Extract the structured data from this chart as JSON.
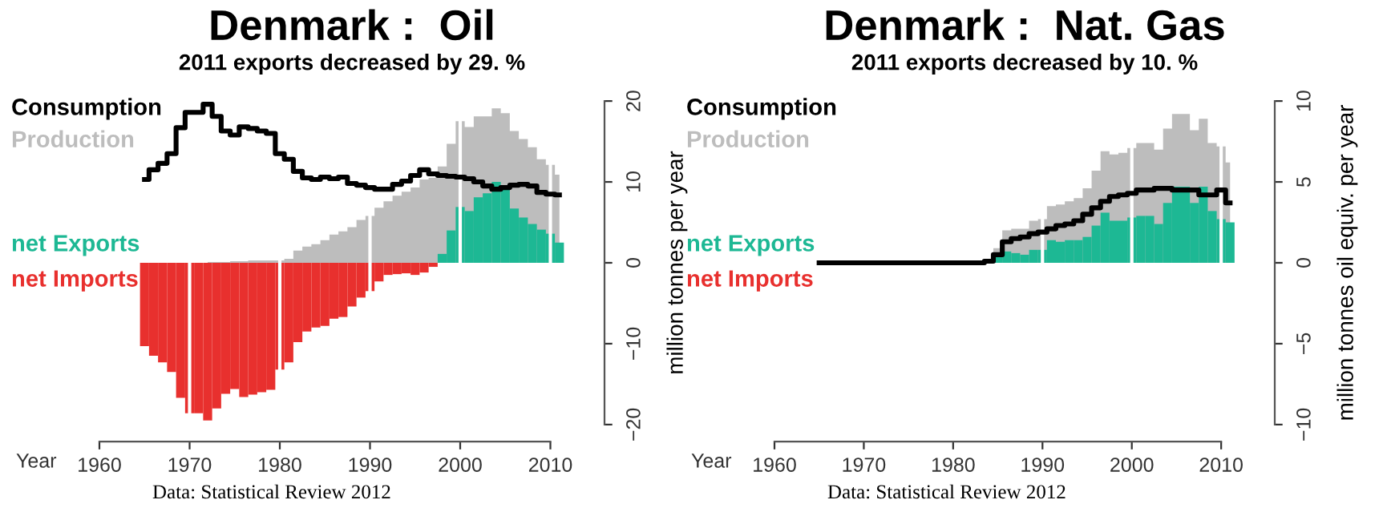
{
  "chart_data": [
    {
      "type": "bar",
      "title": "Denmark :  Oil",
      "subtitle": "2011 exports decreased by 29. %",
      "xlabel": "Year",
      "ylabel": "million tonnes per year",
      "x": [
        1965,
        1966,
        1967,
        1968,
        1969,
        1970,
        1971,
        1972,
        1973,
        1974,
        1975,
        1976,
        1977,
        1978,
        1979,
        1980,
        1981,
        1982,
        1983,
        1984,
        1985,
        1986,
        1987,
        1988,
        1989,
        1990,
        1991,
        1992,
        1993,
        1994,
        1995,
        1996,
        1997,
        1998,
        1999,
        2000,
        2001,
        2002,
        2003,
        2004,
        2005,
        2006,
        2007,
        2008,
        2009,
        2010,
        2011
      ],
      "series": [
        {
          "name": "Consumption",
          "type": "step",
          "color": "#000000",
          "values": [
            10.3,
            11.5,
            12.3,
            13.5,
            16.7,
            18.6,
            18.6,
            19.6,
            18.1,
            16.3,
            15.8,
            16.8,
            16.6,
            16.3,
            16.0,
            13.5,
            12.8,
            11.3,
            10.5,
            10.3,
            10.6,
            10.4,
            10.6,
            9.8,
            9.6,
            9.3,
            9.1,
            9.1,
            9.7,
            10.1,
            10.8,
            11.5,
            11.0,
            10.8,
            10.7,
            10.6,
            10.4,
            10.0,
            9.5,
            9.1,
            9.3,
            9.6,
            9.7,
            9.5,
            8.7,
            8.5,
            8.4
          ]
        },
        {
          "name": "Production",
          "type": "area",
          "color": "#bdbdbd",
          "values": [
            null,
            null,
            null,
            null,
            null,
            null,
            null,
            0.1,
            0.1,
            0.1,
            0.2,
            0.2,
            0.3,
            0.3,
            0.3,
            0.3,
            0.5,
            1.5,
            2.0,
            2.3,
            2.8,
            3.5,
            3.9,
            4.4,
            5.3,
            5.8,
            6.8,
            7.6,
            8.3,
            8.8,
            9.3,
            10.3,
            10.5,
            11.9,
            14.7,
            17.5,
            16.8,
            18.1,
            18.1,
            19.1,
            18.5,
            16.3,
            15.3,
            14.3,
            12.8,
            12.1,
            10.9
          ]
        },
        {
          "name": "net Exports",
          "color": "#1db894",
          "values": [
            null,
            null,
            null,
            null,
            null,
            null,
            null,
            null,
            null,
            null,
            null,
            null,
            null,
            null,
            null,
            null,
            null,
            null,
            null,
            null,
            null,
            null,
            null,
            null,
            null,
            null,
            null,
            null,
            null,
            null,
            null,
            null,
            null,
            1.1,
            4.0,
            6.9,
            6.4,
            8.1,
            8.6,
            10.0,
            9.2,
            6.7,
            5.6,
            4.8,
            4.1,
            3.6,
            2.5
          ]
        },
        {
          "name": "net Imports",
          "color": "#e8302e",
          "values": [
            -10.3,
            -11.5,
            -12.3,
            -13.5,
            -16.7,
            -18.6,
            -18.6,
            -19.5,
            -18.0,
            -16.2,
            -15.6,
            -16.6,
            -16.3,
            -16.0,
            -15.7,
            -13.2,
            -12.3,
            -9.8,
            -8.5,
            -8.0,
            -7.8,
            -6.9,
            -6.7,
            -5.4,
            -4.3,
            -3.5,
            -2.3,
            -1.5,
            -1.4,
            -1.3,
            -1.5,
            -1.2,
            -0.5,
            null,
            null,
            null,
            null,
            null,
            null,
            null,
            null,
            null,
            null,
            null,
            null,
            null,
            null
          ]
        }
      ],
      "xlim": [
        1960,
        2016
      ],
      "xticks": [
        1960,
        1970,
        1980,
        1990,
        2000,
        2010
      ],
      "ylim": [
        -21,
        21
      ],
      "yticks": [
        -20,
        -10,
        0,
        10,
        20
      ],
      "grid": "x",
      "legend": "left",
      "annotations": [
        "Data: Statistical Review 2012"
      ]
    },
    {
      "type": "bar",
      "title": "Denmark :  Nat. Gas",
      "subtitle": "2011 exports decreased by 10. %",
      "xlabel": "Year",
      "ylabel": "million tonnes oil equiv. per year",
      "x": [
        1965,
        1966,
        1967,
        1968,
        1969,
        1970,
        1971,
        1972,
        1973,
        1974,
        1975,
        1976,
        1977,
        1978,
        1979,
        1980,
        1981,
        1982,
        1983,
        1984,
        1985,
        1986,
        1987,
        1988,
        1989,
        1990,
        1991,
        1992,
        1993,
        1994,
        1995,
        1996,
        1997,
        1998,
        1999,
        2000,
        2001,
        2002,
        2003,
        2004,
        2005,
        2006,
        2007,
        2008,
        2009,
        2010,
        2011
      ],
      "series": [
        {
          "name": "Consumption",
          "type": "step",
          "color": "#000000",
          "values": [
            0,
            0,
            0,
            0,
            0,
            0,
            0,
            0,
            0,
            0,
            0,
            0,
            0,
            0,
            0,
            0,
            0,
            0,
            0,
            0.1,
            0.5,
            1.3,
            1.5,
            1.6,
            1.8,
            1.9,
            2.1,
            2.3,
            2.4,
            2.6,
            3.0,
            3.4,
            3.8,
            4.1,
            4.2,
            4.3,
            4.5,
            4.5,
            4.6,
            4.6,
            4.5,
            4.5,
            4.5,
            4.2,
            4.2,
            4.5,
            3.7
          ]
        },
        {
          "name": "Production",
          "type": "area",
          "color": "#bdbdbd",
          "values": [
            null,
            null,
            null,
            null,
            null,
            null,
            null,
            null,
            null,
            null,
            null,
            null,
            null,
            null,
            null,
            null,
            null,
            null,
            null,
            0.1,
            0.9,
            2.0,
            2.1,
            2.1,
            2.6,
            2.7,
            3.5,
            3.6,
            3.8,
            4.0,
            4.6,
            5.7,
            6.9,
            6.7,
            6.8,
            7.1,
            7.4,
            7.4,
            7.0,
            8.3,
            9.2,
            9.2,
            8.2,
            8.9,
            7.4,
            7.2,
            6.2
          ]
        },
        {
          "name": "net Exports",
          "color": "#1db894",
          "values": [
            null,
            null,
            null,
            null,
            null,
            null,
            null,
            null,
            null,
            null,
            null,
            null,
            null,
            null,
            null,
            null,
            null,
            null,
            null,
            null,
            0.4,
            0.7,
            0.6,
            0.5,
            0.8,
            0.8,
            1.4,
            1.3,
            1.4,
            1.4,
            1.6,
            2.3,
            3.1,
            2.6,
            2.6,
            2.8,
            2.9,
            2.9,
            2.4,
            3.7,
            4.7,
            4.7,
            3.7,
            4.7,
            3.2,
            2.7,
            2.5
          ]
        },
        {
          "name": "net Imports",
          "color": "#e8302e",
          "values": [
            null,
            null,
            null,
            null,
            null,
            null,
            null,
            null,
            null,
            null,
            null,
            null,
            null,
            null,
            null,
            null,
            null,
            null,
            null,
            null,
            null,
            null,
            null,
            null,
            null,
            null,
            null,
            null,
            null,
            null,
            null,
            null,
            null,
            null,
            null,
            null,
            null,
            null,
            null,
            null,
            null,
            null,
            null,
            null,
            null,
            null,
            null
          ]
        }
      ],
      "xlim": [
        1960,
        2016
      ],
      "xticks": [
        1960,
        1970,
        1980,
        1990,
        2000,
        2010
      ],
      "ylim": [
        -10.5,
        10.5
      ],
      "yticks": [
        -10,
        -5,
        0,
        5,
        10
      ],
      "grid": "x",
      "legend": "left",
      "annotations": [
        "Data: Statistical Review 2012"
      ]
    }
  ]
}
